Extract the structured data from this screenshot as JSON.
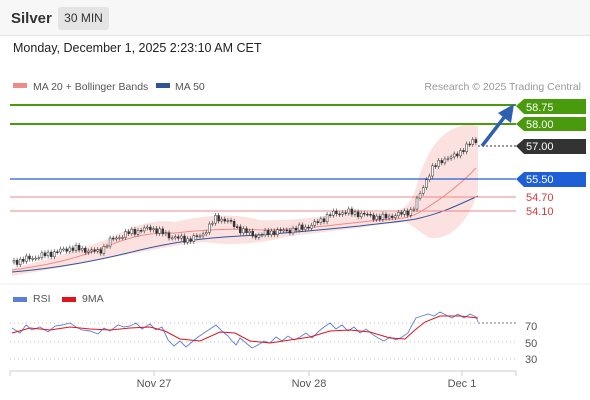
{
  "header": {
    "instrument": "Silver",
    "timeframe": "30 MIN"
  },
  "timestamp": "Monday, December 1, 2025 2:23:10 AM CET",
  "legend": {
    "ma20": {
      "label": "MA 20 + Bollinger Bands",
      "color": "#f08a8a"
    },
    "ma50": {
      "label": "MA 50",
      "color": "#2f5597"
    },
    "credit": "Research © 2025 Trading Central"
  },
  "levels": [
    {
      "value": "58.75",
      "role": "target",
      "color": "#4a9a0e"
    },
    {
      "value": "58.00",
      "role": "target",
      "color": "#4a9a0e"
    },
    {
      "value": "57.00",
      "role": "last-price",
      "color": "#333333"
    },
    {
      "value": "55.50",
      "role": "pivot",
      "color": "#1f5fd6"
    },
    {
      "value": "54.70",
      "role": "support",
      "color": "#d43a3a"
    },
    {
      "value": "54.10",
      "role": "support",
      "color": "#d43a3a"
    }
  ],
  "rsi_legend": {
    "rsi": {
      "label": "RSI",
      "color": "#5b7fd6"
    },
    "ma": {
      "label": "9MA",
      "color": "#e0141a"
    }
  },
  "rsi_axis": [
    "70",
    "50",
    "30"
  ],
  "x_axis": [
    "Nov 27",
    "Nov 28",
    "Dec 1"
  ]
}
